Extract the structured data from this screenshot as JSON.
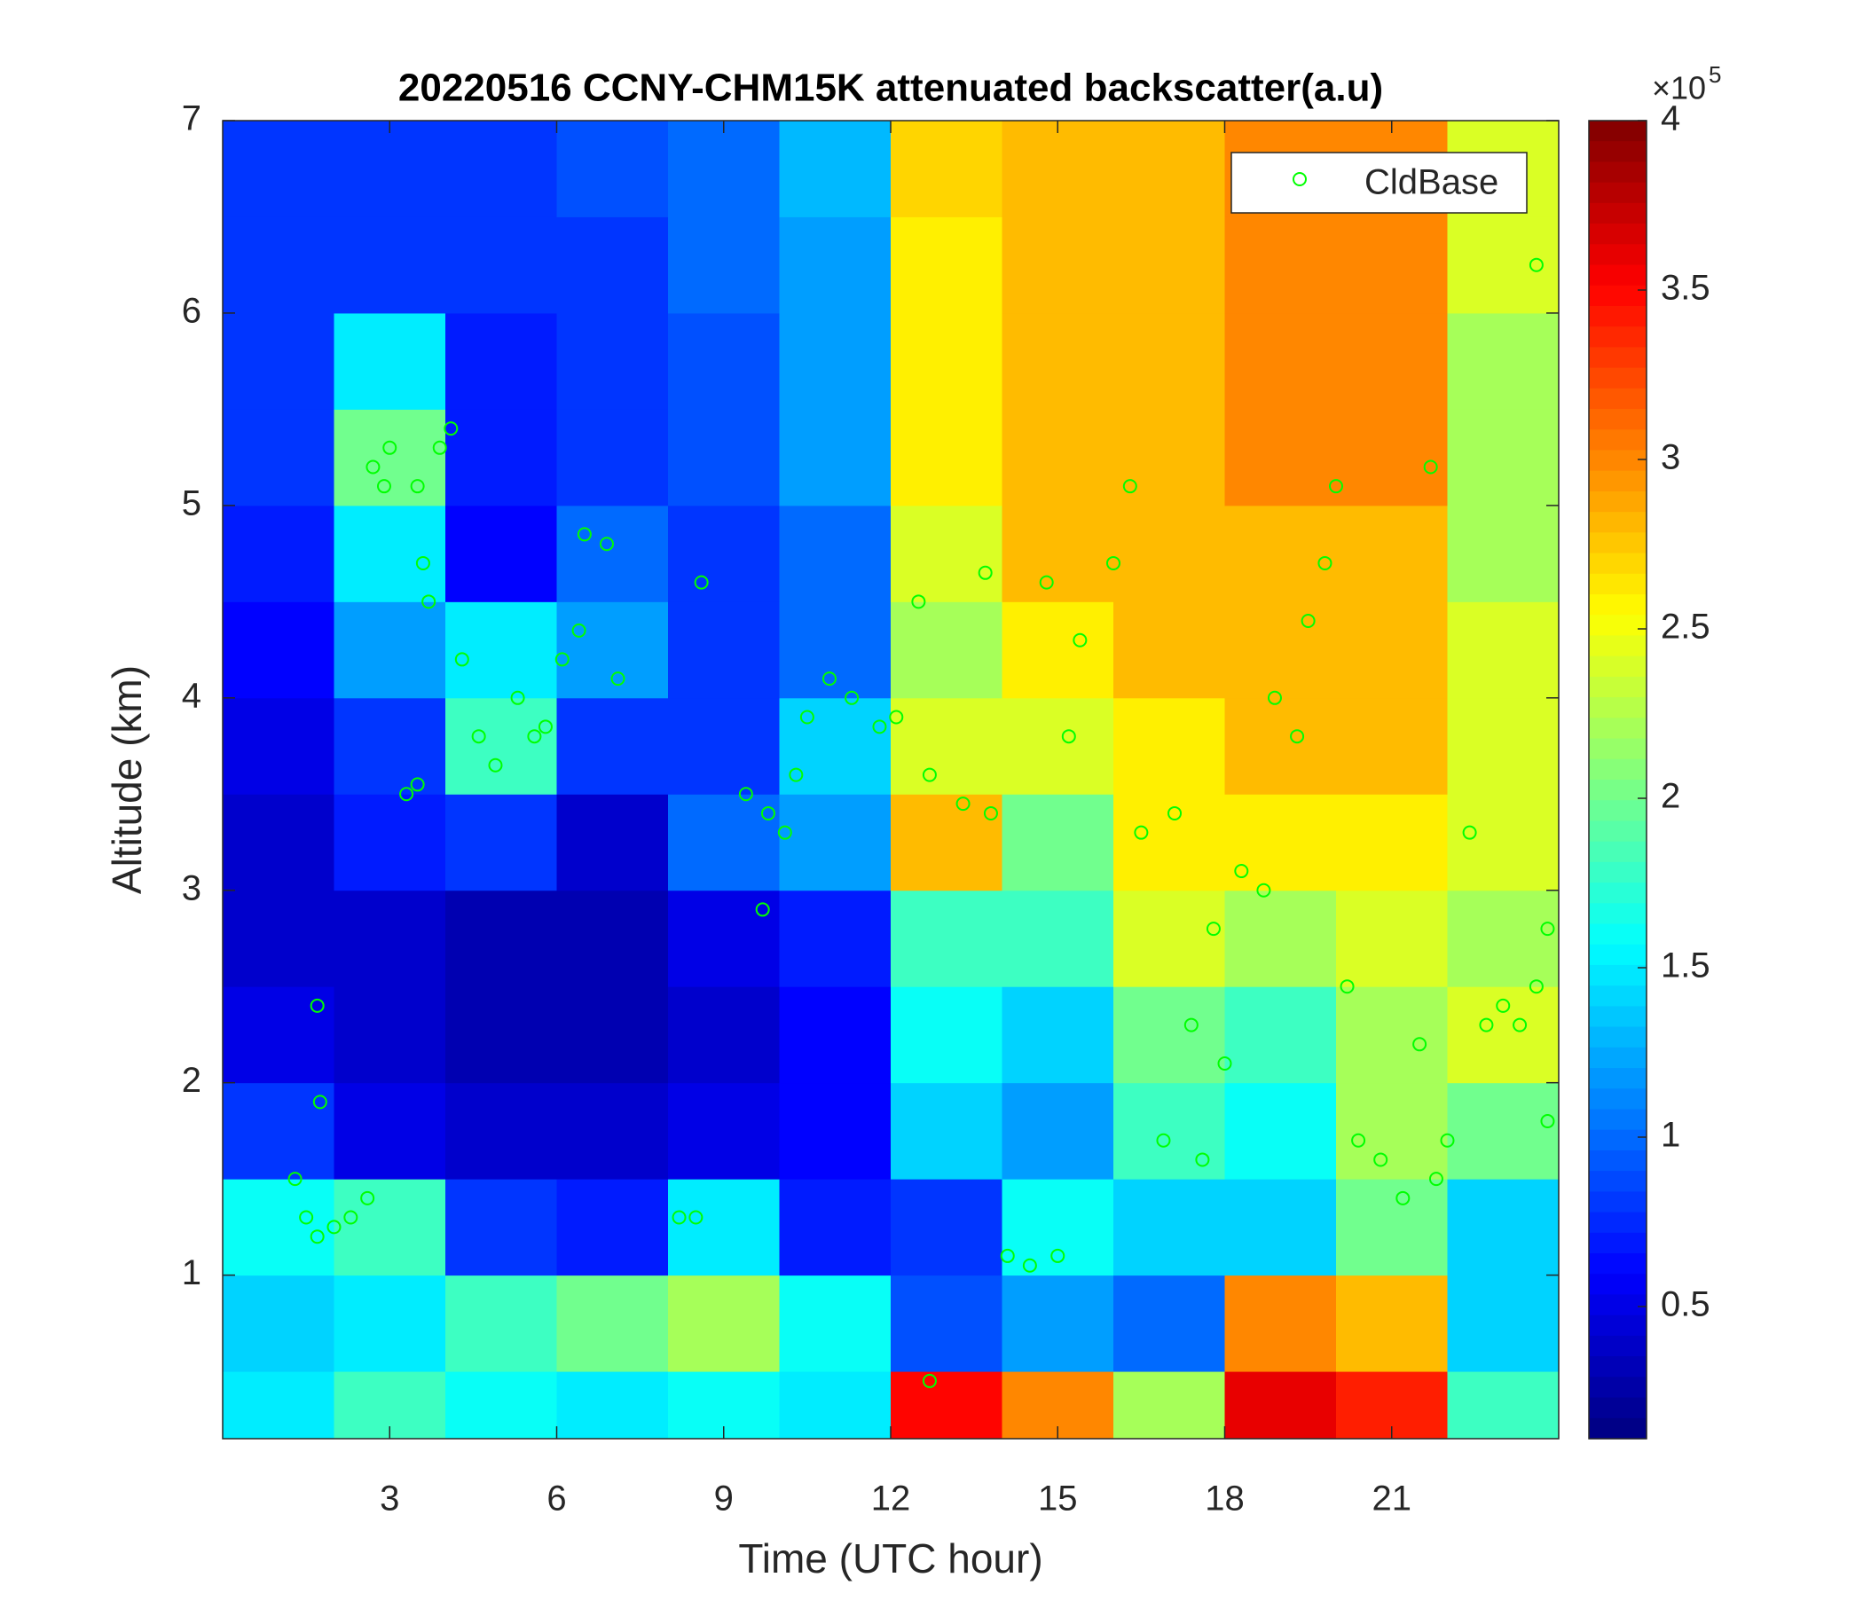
{
  "chart_data": {
    "type": "heatmap",
    "title": "20220516 CCNY-CHM15K attenuated backscatter(a.u)",
    "x_label": "Time (UTC hour)",
    "y_label": "Altitude (km)",
    "xlim": [
      0,
      24
    ],
    "xticks": [
      3,
      6,
      9,
      12,
      15,
      18,
      21
    ],
    "ylim": [
      0.15,
      7
    ],
    "yticks": [
      1,
      2,
      3,
      4,
      5,
      6,
      7
    ],
    "x_edges": [
      0,
      2,
      4,
      6,
      8,
      10,
      12,
      14,
      16,
      18,
      20,
      22,
      24
    ],
    "y_edges": [
      0.15,
      0.5,
      1,
      1.5,
      2,
      2.5,
      3,
      3.5,
      4,
      4.5,
      5,
      5.5,
      6,
      6.5,
      7
    ],
    "z": [
      [
        1.5,
        1.4,
        1.6,
        0.8,
        0.5,
        0.4,
        0.4,
        0.5,
        0.6,
        0.7,
        0.8,
        0.8,
        0.8,
        0.8
      ],
      [
        1.8,
        1.5,
        1.8,
        0.5,
        0.4,
        0.4,
        0.7,
        0.8,
        1.2,
        1.5,
        2.0,
        1.5,
        0.8,
        0.8
      ],
      [
        1.6,
        1.8,
        0.8,
        0.4,
        0.3,
        0.3,
        0.8,
        1.8,
        1.5,
        0.6,
        0.7,
        0.7,
        0.8,
        0.8
      ],
      [
        1.5,
        2.0,
        0.7,
        0.4,
        0.3,
        0.3,
        0.4,
        0.8,
        1.2,
        1.0,
        0.8,
        0.8,
        0.8,
        0.9
      ],
      [
        1.6,
        2.2,
        1.5,
        0.5,
        0.4,
        0.5,
        1.0,
        0.8,
        0.8,
        0.8,
        0.9,
        0.9,
        1.0,
        1.0
      ],
      [
        1.5,
        1.6,
        0.7,
        0.6,
        0.6,
        0.7,
        1.2,
        1.4,
        1.0,
        1.0,
        1.2,
        1.2,
        1.2,
        1.3
      ],
      [
        3.5,
        0.9,
        0.8,
        1.4,
        1.6,
        1.8,
        2.8,
        2.4,
        2.2,
        2.4,
        2.6,
        2.6,
        2.6,
        2.7
      ],
      [
        3.0,
        1.2,
        1.6,
        1.2,
        1.4,
        1.8,
        2.0,
        2.4,
        2.6,
        2.8,
        2.8,
        2.8,
        2.8,
        2.8
      ],
      [
        2.2,
        1.0,
        1.4,
        1.8,
        2.0,
        2.4,
        2.6,
        2.6,
        2.8,
        2.8,
        2.8,
        2.8,
        2.8,
        2.8
      ],
      [
        3.6,
        3.0,
        1.4,
        1.6,
        1.8,
        2.2,
        2.6,
        2.8,
        2.8,
        2.8,
        3.0,
        3.0,
        3.0,
        3.0
      ],
      [
        3.4,
        2.8,
        2.0,
        2.2,
        2.2,
        2.4,
        2.6,
        2.8,
        2.8,
        2.8,
        3.0,
        3.0,
        3.0,
        3.0
      ],
      [
        1.8,
        1.4,
        1.4,
        2.0,
        2.4,
        2.2,
        2.4,
        2.4,
        2.4,
        2.2,
        2.2,
        2.2,
        2.4,
        2.4
      ]
    ],
    "colormap": "jet",
    "clim": [
      0.11,
      4
    ],
    "cticks": [
      0.5,
      1,
      1.5,
      2,
      2.5,
      3,
      3.5,
      4
    ],
    "colorbar_multiplier": {
      "base": "×10",
      "exponent": "5"
    },
    "legend": "upper right",
    "series": [
      {
        "name": "CldBase",
        "type": "scatter",
        "color": "#00ff00",
        "x": [
          1.3,
          1.5,
          1.7,
          1.7,
          1.75,
          2.0,
          2.3,
          2.6,
          2.7,
          2.9,
          3.0,
          3.3,
          3.5,
          3.5,
          3.6,
          3.7,
          3.9,
          4.1,
          4.3,
          4.6,
          4.9,
          5.3,
          5.6,
          5.8,
          6.1,
          6.4,
          6.5,
          6.9,
          7.1,
          8.6,
          8.2,
          8.5,
          9.4,
          9.7,
          9.8,
          10.1,
          10.3,
          10.5,
          10.9,
          11.3,
          11.8,
          12.1,
          12.5,
          12.7,
          12.7,
          13.3,
          13.8,
          13.7,
          14.1,
          14.5,
          15.0,
          14.8,
          15.2,
          15.4,
          16.0,
          16.3,
          16.5,
          16.9,
          17.1,
          17.4,
          17.6,
          17.8,
          18.0,
          18.3,
          18.7,
          18.9,
          19.3,
          19.5,
          19.8,
          20.0,
          20.2,
          20.4,
          20.8,
          21.2,
          21.5,
          21.8,
          21.7,
          22.0,
          22.4,
          22.7,
          23.0,
          23.3,
          23.6,
          23.8,
          23.6,
          23.8
        ],
        "y": [
          1.5,
          1.3,
          1.2,
          2.4,
          1.9,
          1.25,
          1.3,
          1.4,
          5.2,
          5.1,
          5.3,
          3.5,
          3.55,
          5.1,
          4.7,
          4.5,
          5.3,
          5.4,
          4.2,
          3.8,
          3.65,
          4.0,
          3.8,
          3.85,
          4.2,
          4.35,
          4.85,
          4.8,
          4.1,
          4.6,
          1.3,
          1.3,
          3.5,
          2.9,
          3.4,
          3.3,
          3.6,
          3.9,
          4.1,
          4.0,
          3.85,
          3.9,
          4.5,
          3.6,
          0.45,
          3.45,
          3.4,
          4.65,
          1.1,
          1.05,
          1.1,
          4.6,
          3.8,
          4.3,
          4.7,
          5.1,
          3.3,
          1.7,
          3.4,
          2.3,
          1.6,
          2.8,
          2.1,
          3.1,
          3.0,
          4.0,
          3.8,
          4.4,
          4.7,
          5.1,
          2.5,
          1.7,
          1.6,
          1.4,
          2.2,
          1.5,
          5.2,
          1.7,
          3.3,
          2.3,
          2.4,
          2.3,
          2.5,
          1.8,
          6.25,
          2.8
        ]
      }
    ]
  }
}
